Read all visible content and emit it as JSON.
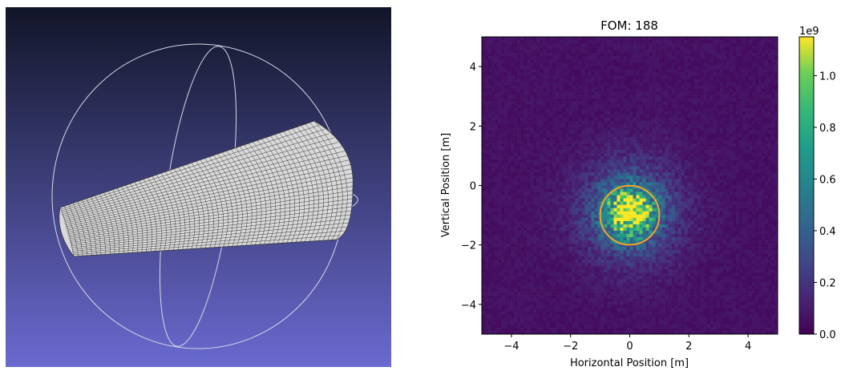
{
  "viewer": {
    "background_top": "#121528",
    "background_bottom": "#6a6ad0",
    "trackball_color": "#d8d8e8",
    "mesh_fill": "#d9d9d9",
    "mesh_line": "#3a3a3a"
  },
  "chart_data": {
    "type": "heatmap",
    "title": "FOM: 188",
    "xlabel": "Horizontal Position [m]",
    "ylabel": "Vertical Position [m]",
    "xlim": [
      -5,
      5
    ],
    "ylim": [
      -5,
      5
    ],
    "xticks": [
      -4,
      -2,
      0,
      2,
      4
    ],
    "yticks": [
      -4,
      -2,
      0,
      2,
      4
    ],
    "xtick_labels": [
      "−4",
      "−2",
      "0",
      "2",
      "4"
    ],
    "ytick_labels": [
      "−4",
      "−2",
      "0",
      "2",
      "4"
    ],
    "colormap": "viridis",
    "colorbar": {
      "range": [
        0,
        1.15
      ],
      "scale_label": "1e9",
      "ticks": [
        0.0,
        0.2,
        0.4,
        0.6,
        0.8,
        1.0
      ],
      "tick_labels": [
        "0.0",
        "0.2",
        "0.4",
        "0.6",
        "0.8",
        "1.0"
      ]
    },
    "beam": {
      "center_x": 0.0,
      "center_y": -0.9,
      "peak": 1.0,
      "sigma": 1.2
    },
    "circle": {
      "center_x": 0.0,
      "center_y": -1.0,
      "radius": 1.0,
      "color": "#f5a623"
    },
    "grid": false
  }
}
